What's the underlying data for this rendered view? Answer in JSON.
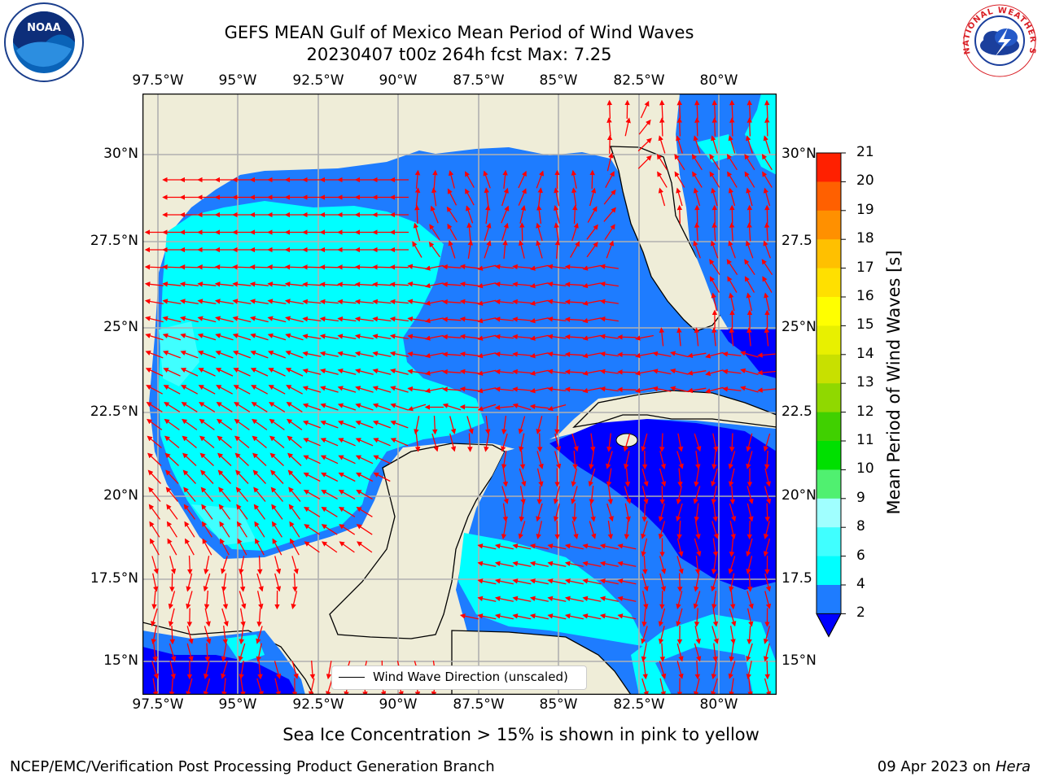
{
  "header": {
    "title_line1": "GEFS MEAN Gulf of Mexico Mean Period of Wind Waves",
    "title_line2": "20230407 t00z 264h fcst   Max: 7.25"
  },
  "logos": {
    "left": "NOAA",
    "right": "NATIONAL WEATHER SERVICE"
  },
  "map": {
    "lon_labels": [
      "97.5°W",
      "95°W",
      "92.5°W",
      "90°W",
      "87.5°W",
      "85°W",
      "82.5°W",
      "80°W"
    ],
    "lat_labels_left": [
      "30°N",
      "27.5°N",
      "25°N",
      "22.5°N",
      "20°N",
      "17.5°N",
      "15°N"
    ],
    "lat_labels_right": [
      "30°N",
      "27.5",
      "25°N",
      "22.5",
      "20°N",
      "17.5",
      "15°N"
    ],
    "legend_label": "Wind Wave Direction (unscaled)",
    "colors": {
      "land": "#efedd8",
      "ocean_low": "#0000ff",
      "ocean_mid": "#1e7cff",
      "ocean_cyan": "#00ffff",
      "arrow": "#ff0000"
    }
  },
  "colorbar": {
    "label": "Mean Period of Wind Waves [s]",
    "ticks": [
      "2",
      "4",
      "6",
      "8",
      "9",
      "10",
      "11",
      "12",
      "13",
      "14",
      "15",
      "16",
      "17",
      "18",
      "19",
      "20",
      "21"
    ],
    "colors": [
      "#1e7cff",
      "#00ffff",
      "#40ffff",
      "#a0ffff",
      "#50f070",
      "#00e000",
      "#40d000",
      "#90d800",
      "#c8e000",
      "#e8f000",
      "#ffff00",
      "#ffe000",
      "#ffc000",
      "#ff9000",
      "#ff6000",
      "#ff2000"
    ],
    "extend_color": "#0000ff"
  },
  "footer": {
    "note": "Sea Ice Concentration > 15% is shown in pink to yellow",
    "credit": "NCEP/EMC/Verification Post Processing Product Generation Branch",
    "date": "09 Apr 2023 on",
    "machine": "Hera"
  }
}
